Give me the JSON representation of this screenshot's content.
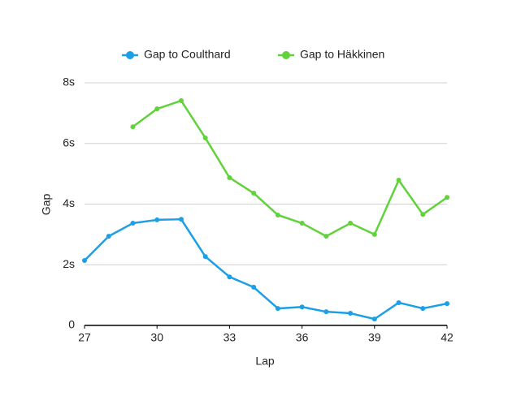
{
  "chart_data": {
    "type": "line",
    "x_label": "Lap",
    "y_label": "Gap",
    "x": [
      27,
      28,
      29,
      30,
      31,
      32,
      33,
      34,
      35,
      36,
      37,
      38,
      39,
      40,
      41,
      42
    ],
    "series": [
      {
        "name": "Gap to Coulthard",
        "color": "#1b9fe6",
        "values": [
          2.14,
          2.94,
          3.37,
          3.48,
          3.5,
          2.27,
          1.6,
          1.26,
          0.56,
          0.61,
          0.45,
          0.4,
          0.21,
          0.75,
          0.56,
          0.72
        ]
      },
      {
        "name": "Gap to Häkkinen",
        "color": "#62d23c",
        "values": [
          null,
          null,
          6.55,
          7.14,
          7.41,
          6.18,
          4.87,
          4.36,
          3.64,
          3.37,
          2.94,
          3.37,
          3.0,
          4.79,
          3.66,
          4.22
        ]
      }
    ],
    "xlim": [
      27,
      42
    ],
    "xticks": [
      27,
      30,
      33,
      36,
      39,
      42
    ],
    "ylim": [
      0,
      8
    ],
    "yticks": [
      0,
      {
        "value": 2,
        "label": "2s"
      },
      {
        "value": 4,
        "label": "4s"
      },
      {
        "value": 6,
        "label": "6s"
      },
      {
        "value": 8,
        "label": "8s"
      }
    ],
    "grid": true,
    "legend": "top"
  }
}
